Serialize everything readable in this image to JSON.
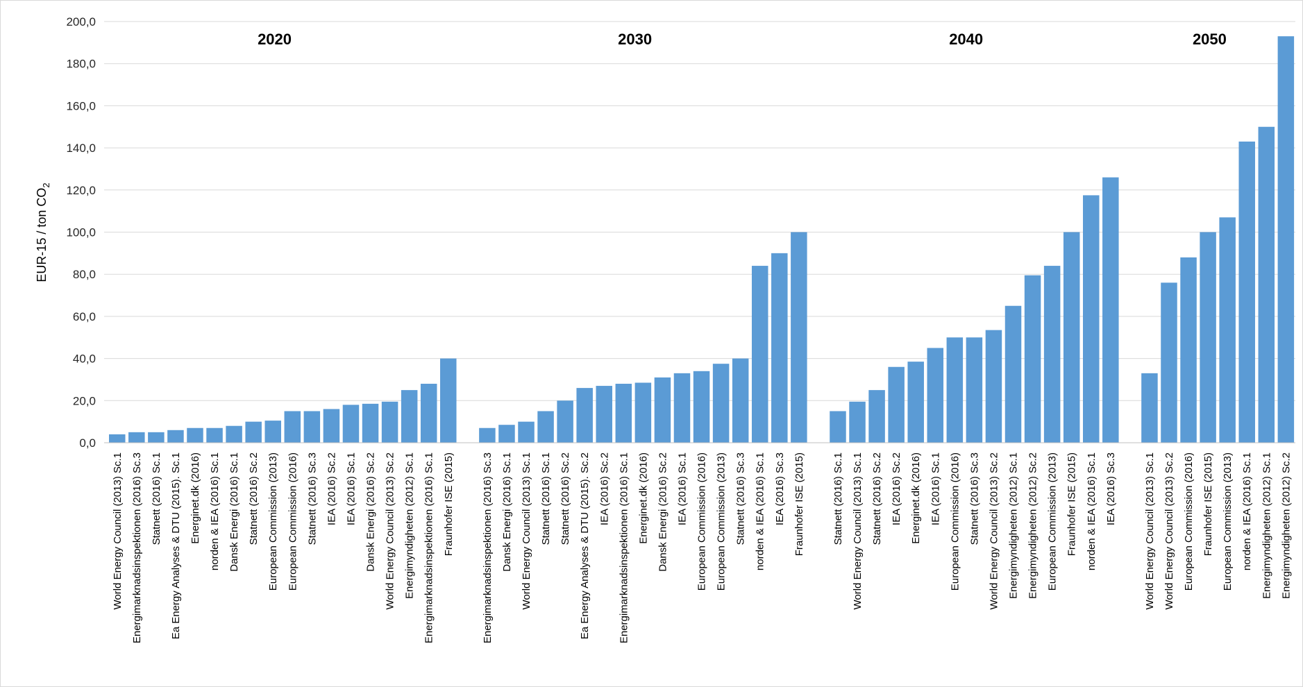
{
  "chart_data": {
    "type": "bar",
    "ylabel": "EUR-15 / ton CO",
    "ylabel_subscript": "2",
    "ylim": [
      0,
      200
    ],
    "yticks": [
      "0,0",
      "20,0",
      "40,0",
      "60,0",
      "80,0",
      "100,0",
      "120,0",
      "140,0",
      "160,0",
      "180,0",
      "200,0"
    ],
    "grid": true,
    "bar_color": "#5b9bd5",
    "groups": [
      {
        "name": "2020",
        "categories": [
          "World Energy Council (2013)  Sc.1",
          "Energimarknadsinspektionen (2016) Sc.3",
          "Statnett (2016)  Sc.1",
          "Ea Energy Analyses & DTU (2015). Sc.1",
          "Energinet.dk (2016)",
          "norden & IEA (2016)  Sc.1",
          "Dansk Energi (2016)  Sc.1",
          "Statnett (2016)  Sc.2",
          "European Commission (2013)",
          "European Commission (2016)",
          "Statnett (2016)  Sc.3",
          "IEA (2016)  Sc.2",
          "IEA (2016)  Sc.1",
          "Dansk Energi (2016)  Sc.2",
          "World Energy Council (2013)  Sc.2",
          "Energimyndigheten (2012)  Sc.1",
          "Energimarknadsinspektionen (2016) Sc.1",
          "Fraunhofer ISE (2015)"
        ],
        "values": [
          4,
          5,
          5,
          6,
          7,
          7,
          8,
          10,
          10.5,
          15,
          15,
          16,
          18,
          18.5,
          19.5,
          25,
          28,
          40
        ]
      },
      {
        "name": "2030",
        "categories": [
          "Energimarknadsinspektionen (2016) Sc.3",
          "Dansk Energi (2016)  Sc.1",
          "World Energy Council (2013)  Sc.1",
          "Statnett (2016)  Sc.1",
          "Statnett (2016)  Sc.2",
          "Ea Energy Analyses & DTU (2015). Sc.2",
          "IEA (2016)  Sc.2",
          "Energimarknadsinspektionen (2016) Sc.1",
          "Energinet.dk (2016)",
          "Dansk Energi (2016)  Sc.2",
          "IEA (2016)  Sc.1",
          "European Commission (2016)",
          "European Commission (2013)",
          "Statnett (2016)  Sc.3",
          "norden & IEA (2016)  Sc.1",
          "IEA (2016)  Sc.3",
          "Fraunhofer ISE (2015)"
        ],
        "values": [
          7,
          8.5,
          10,
          15,
          20,
          26,
          27,
          28,
          28.5,
          31,
          33,
          34,
          37.5,
          40,
          84,
          90,
          100
        ]
      },
      {
        "name": "2040",
        "categories": [
          "Statnett (2016)  Sc.1",
          "World Energy Council (2013)  Sc.1",
          "Statnett (2016)  Sc.2",
          "IEA (2016)  Sc.2",
          "Energinet.dk (2016)",
          "IEA (2016)  Sc.1",
          "European Commission (2016)",
          "Statnett (2016)  Sc.3",
          "World Energy Council (2013)  Sc.2",
          "Energimyndigheten (2012)  Sc.1",
          "Energimyndigheten (2012)  Sc.2",
          "European Commission (2013)",
          "Fraunhofer ISE (2015)",
          "norden & IEA (2016)  Sc.1",
          "IEA (2016)  Sc.3"
        ],
        "values": [
          15,
          19.5,
          25,
          36,
          38.5,
          45,
          50,
          50,
          53.5,
          65,
          79.5,
          84,
          100,
          117.5,
          126
        ]
      },
      {
        "name": "2050",
        "categories": [
          "World Energy Council (2013)  Sc.1",
          "World Energy Council (2013)  Sc.2",
          "European Commission (2016)",
          "Fraunhofer ISE (2015)",
          "European Commission (2013)",
          "norden & IEA (2016)  Sc.1",
          "Energimyndigheten (2012)  Sc.1",
          "Energimyndigheten (2012)  Sc.2"
        ],
        "values": [
          33,
          76,
          88,
          100,
          107,
          143,
          150,
          193
        ]
      }
    ]
  }
}
